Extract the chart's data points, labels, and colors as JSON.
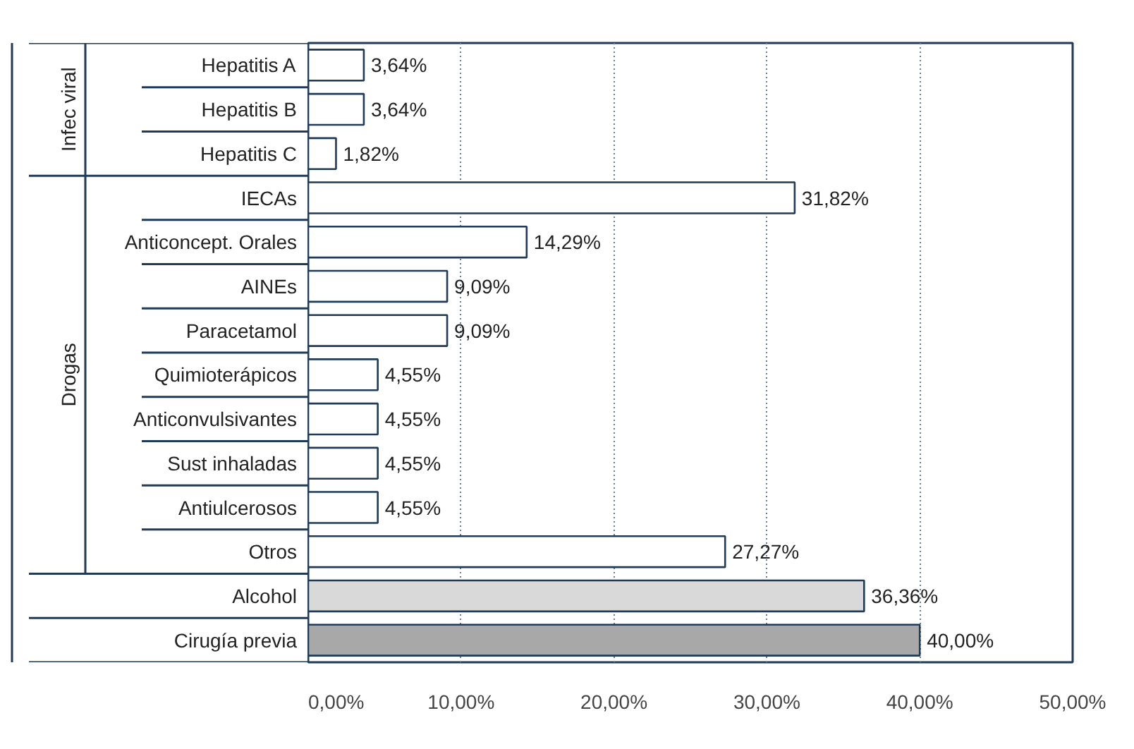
{
  "chart_data": {
    "type": "bar",
    "orientation": "horizontal",
    "categories": [
      "Hepatitis A",
      "Hepatitis B",
      "Hepatitis C",
      "IECAs",
      "Anticoncept. Orales",
      "AINEs",
      "Paracetamol",
      "Quimioterápicos",
      "Anticonvulsivantes",
      "Sust inhaladas",
      "Antiulcerosos",
      "Otros",
      "Alcohol",
      "Cirugía previa"
    ],
    "values": [
      3.64,
      3.64,
      1.82,
      31.82,
      14.29,
      9.09,
      9.09,
      4.55,
      4.55,
      4.55,
      4.55,
      27.27,
      36.36,
      40.0
    ],
    "value_labels": [
      "3,64%",
      "3,64%",
      "1,82%",
      "31,82%",
      "14,29%",
      "9,09%",
      "9,09%",
      "4,55%",
      "4,55%",
      "4,55%",
      "4,55%",
      "27,27%",
      "36,36%",
      "40,00%"
    ],
    "colors": [
      "#ffffff",
      "#ffffff",
      "#ffffff",
      "#ffffff",
      "#ffffff",
      "#ffffff",
      "#ffffff",
      "#ffffff",
      "#ffffff",
      "#ffffff",
      "#ffffff",
      "#ffffff",
      "#d9d9d9",
      "#a8a8a8"
    ],
    "xlim": [
      0,
      50
    ],
    "xticks": [
      {
        "value": 0,
        "label": "0,00%"
      },
      {
        "value": 10,
        "label": "10,00%"
      },
      {
        "value": 20,
        "label": "20,00%"
      },
      {
        "value": 30,
        "label": "30,00%"
      },
      {
        "value": 40,
        "label": "40,00%"
      },
      {
        "value": 50,
        "label": "50,00%"
      }
    ],
    "grid": "x",
    "annotations": [
      "Infec viral",
      "Drogas"
    ]
  }
}
